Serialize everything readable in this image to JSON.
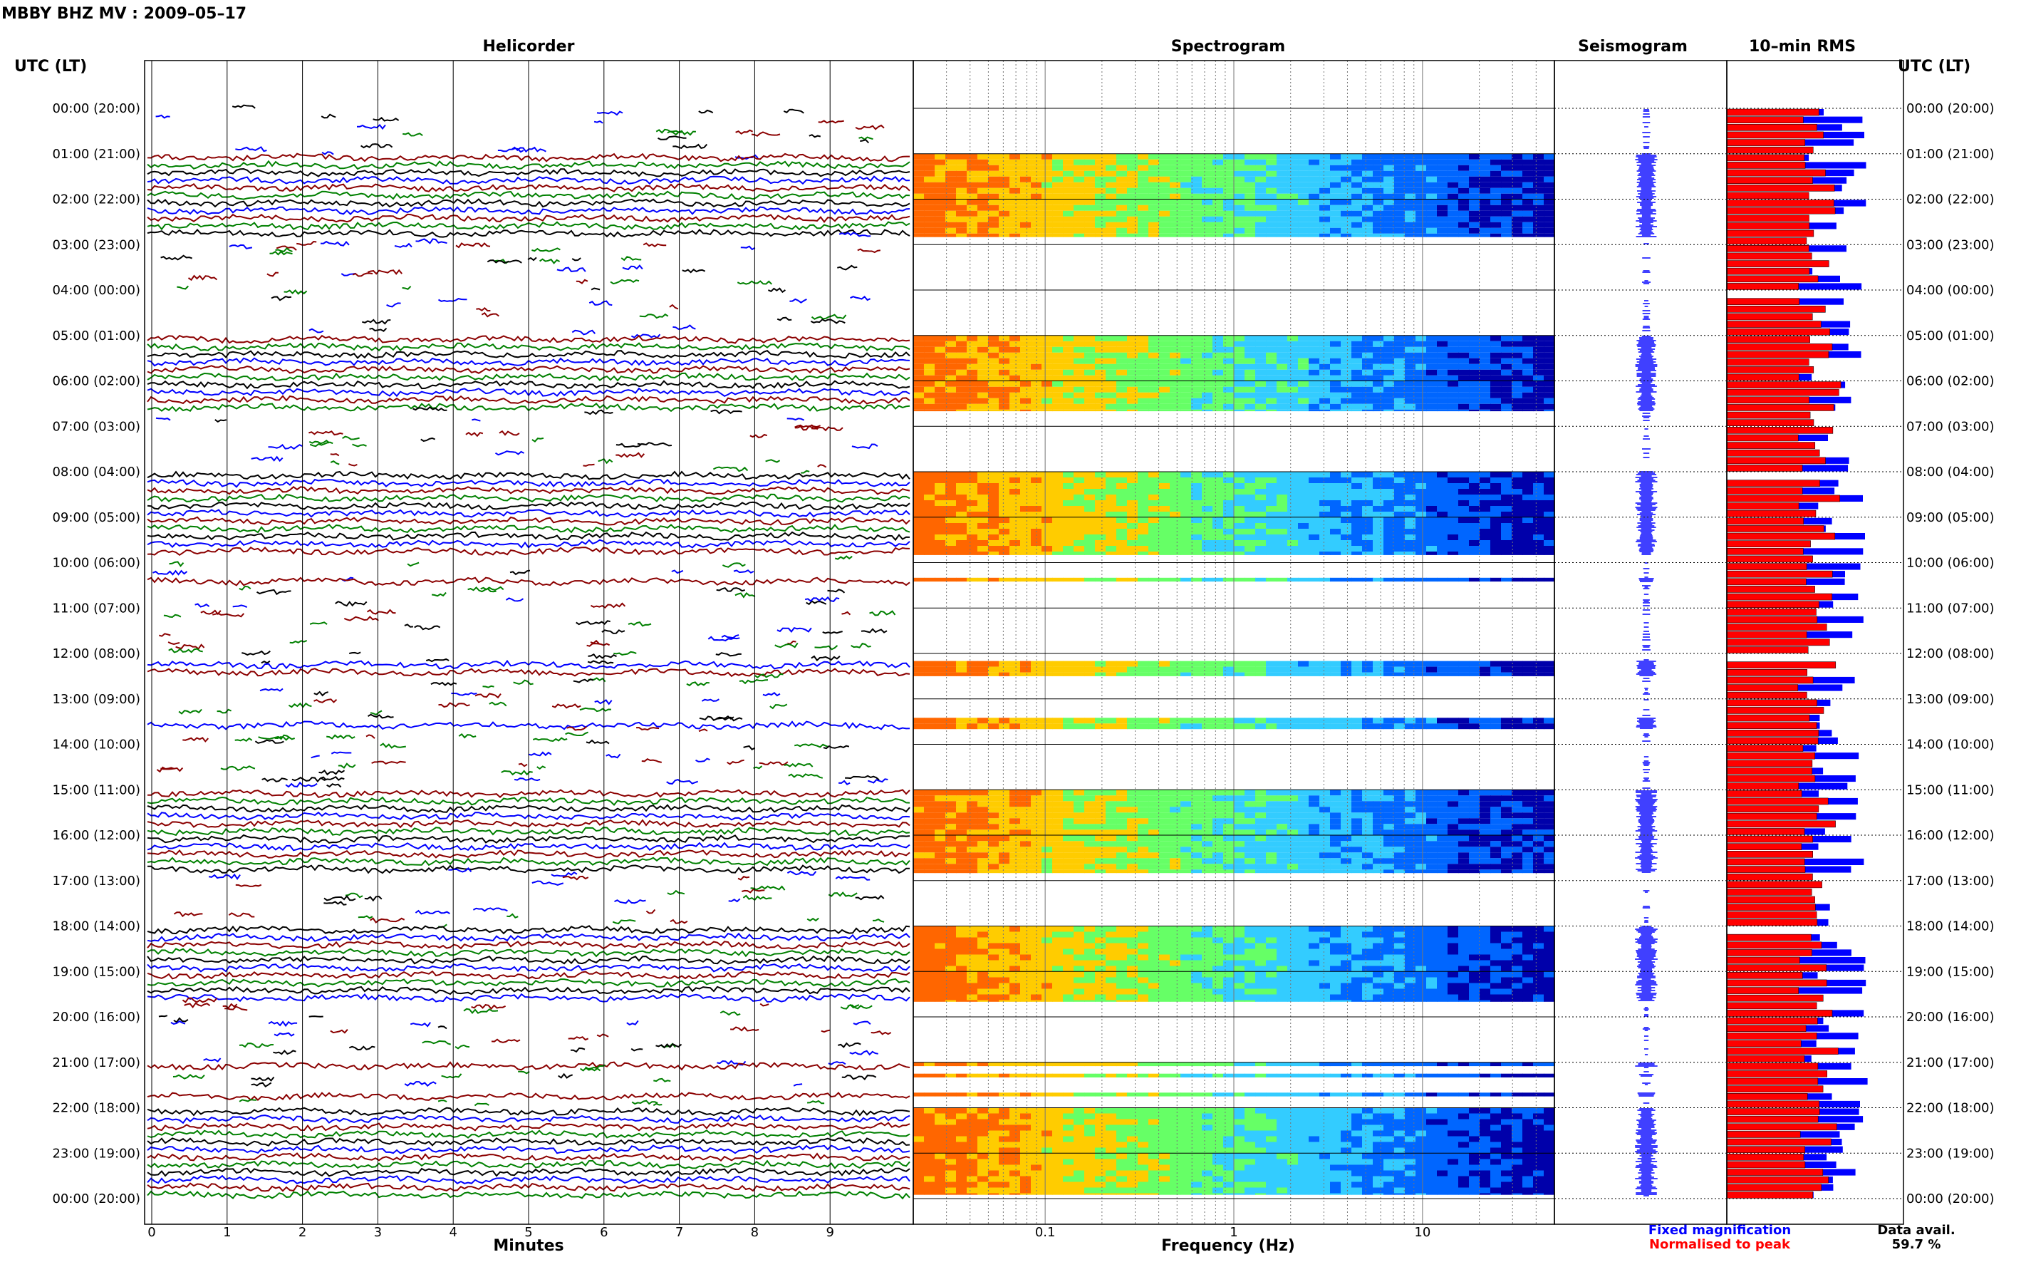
{
  "page_title": "MBBY BHZ MV : 2009–05–17",
  "panels": {
    "helicorder": "Helicorder",
    "spectrogram": "Spectrogram",
    "seismogram": "Seismogram",
    "rms": "10–min RMS"
  },
  "axis_labels": {
    "left_time": "UTC (LT)",
    "right_time": "UTC (LT)",
    "helicorder_x": "Minutes",
    "spectrogram_x": "Frequency (Hz)"
  },
  "time_ticks": [
    "00:00 (20:00)",
    "01:00 (21:00)",
    "02:00 (22:00)",
    "03:00 (23:00)",
    "04:00 (00:00)",
    "05:00 (01:00)",
    "06:00 (02:00)",
    "07:00 (03:00)",
    "08:00 (04:00)",
    "09:00 (05:00)",
    "10:00 (06:00)",
    "11:00 (07:00)",
    "12:00 (08:00)",
    "13:00 (09:00)",
    "14:00 (10:00)",
    "15:00 (11:00)",
    "16:00 (12:00)",
    "17:00 (13:00)",
    "18:00 (14:00)",
    "19:00 (15:00)",
    "20:00 (16:00)",
    "21:00 (17:00)",
    "22:00 (18:00)",
    "23:00 (19:00)",
    "00:00 (20:00)"
  ],
  "minute_ticks": [
    "0",
    "1",
    "2",
    "3",
    "4",
    "5",
    "6",
    "7",
    "8",
    "9"
  ],
  "freq_ticks": [
    "0.1",
    "1",
    "10"
  ],
  "legend": {
    "fixed": "Fixed magnification",
    "normalised": "Normalised to peak",
    "fixed_color": "#0000ff",
    "normalised_color": "#ff0000"
  },
  "data_avail": {
    "label": "Data avail.",
    "value": "59.7 %"
  },
  "chart_data": {
    "type": "heatmap",
    "station": "MBBY BHZ MV",
    "date": "2009-05-17",
    "time_range_utc": [
      "00:00",
      "24:00"
    ],
    "helicorder": {
      "xlabel": "Minutes",
      "xlim": [
        0,
        10
      ],
      "trace_colors": [
        "#000000",
        "#0000ff",
        "#8b0000",
        "#008000"
      ],
      "rows_per_hour": 6
    },
    "spectrogram": {
      "xlabel": "Frequency (Hz)",
      "xlim": [
        0.02,
        50
      ],
      "xscale": "log",
      "colormap": [
        "#ff6600",
        "#ffcc00",
        "#66ff66",
        "#33ccff",
        "#0066ff",
        "#0000aa"
      ],
      "data_segments_utc": [
        [
          "01:00",
          "02:50"
        ],
        [
          "05:00",
          "06:40"
        ],
        [
          "08:00",
          "09:50"
        ],
        [
          "10:20",
          "10:25"
        ],
        [
          "12:10",
          "12:30"
        ],
        [
          "13:25",
          "13:40"
        ],
        [
          "15:00",
          "16:50"
        ],
        [
          "18:00",
          "19:40"
        ],
        [
          "21:00",
          "21:05"
        ],
        [
          "21:15",
          "21:20"
        ],
        [
          "21:40",
          "21:45"
        ],
        [
          "22:00",
          "23:55"
        ]
      ]
    },
    "rms": {
      "series": [
        {
          "name": "Fixed magnification",
          "color": "#0000ff"
        },
        {
          "name": "Normalised to peak",
          "color": "#ff0000"
        }
      ],
      "bin_minutes": 10
    },
    "data_availability_percent": 59.7
  }
}
